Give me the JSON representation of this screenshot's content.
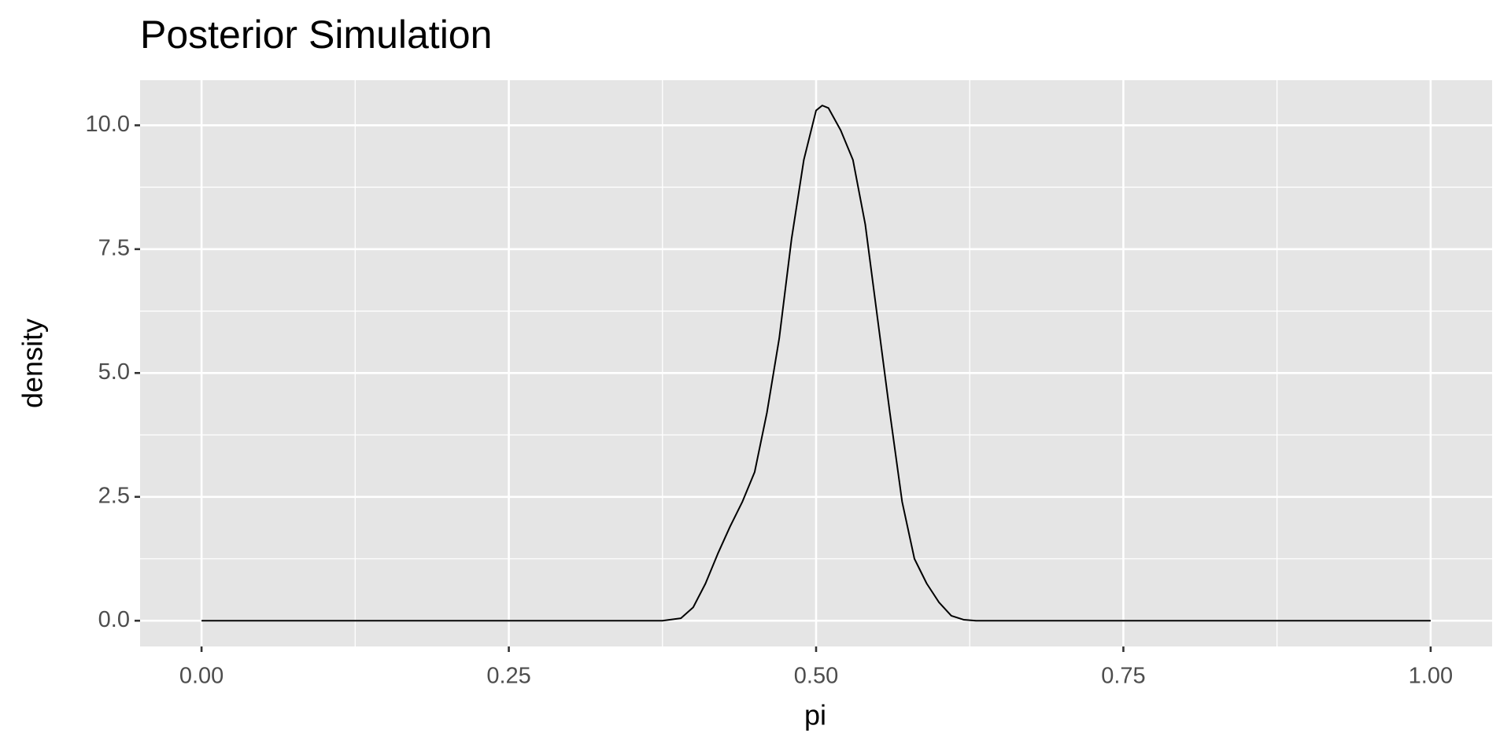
{
  "chart_data": {
    "type": "line",
    "title": "Posterior Simulation",
    "x_label": "pi",
    "y_label": "density",
    "x": [
      0,
      0.375,
      0.39,
      0.4,
      0.41,
      0.42,
      0.43,
      0.44,
      0.45,
      0.46,
      0.47,
      0.48,
      0.49,
      0.5,
      0.505,
      0.51,
      0.52,
      0.53,
      0.54,
      0.55,
      0.56,
      0.57,
      0.58,
      0.59,
      0.6,
      0.61,
      0.62,
      0.63,
      1.0
    ],
    "series": [
      {
        "name": "density",
        "color": "#000000",
        "values": [
          0,
          0,
          0.05,
          0.27,
          0.75,
          1.35,
          1.9,
          2.4,
          3.0,
          4.2,
          5.7,
          7.7,
          9.3,
          10.3,
          10.4,
          10.35,
          9.9,
          9.3,
          8.0,
          6.1,
          4.2,
          2.4,
          1.25,
          0.75,
          0.37,
          0.1,
          0.02,
          0,
          0
        ]
      }
    ],
    "xlim": [
      -0.05,
      1.05
    ],
    "ylim": [
      -0.52,
      10.91
    ],
    "xticks": [
      {
        "value": 0,
        "label": "0.00"
      },
      0.25,
      {
        "value": 0.5,
        "label": "0.50"
      },
      0.75,
      {
        "value": 1,
        "label": "1.00"
      }
    ],
    "yticks": [
      {
        "value": 0,
        "label": "0.0"
      },
      2.5,
      {
        "value": 5,
        "label": "5.0"
      },
      7.5,
      {
        "value": 10,
        "label": "10.0"
      }
    ],
    "x_minor_grid": [
      0.125,
      0.375,
      0.625,
      0.875
    ],
    "y_minor_grid": [
      1.25,
      3.75,
      6.25,
      8.75
    ],
    "grid": true
  }
}
